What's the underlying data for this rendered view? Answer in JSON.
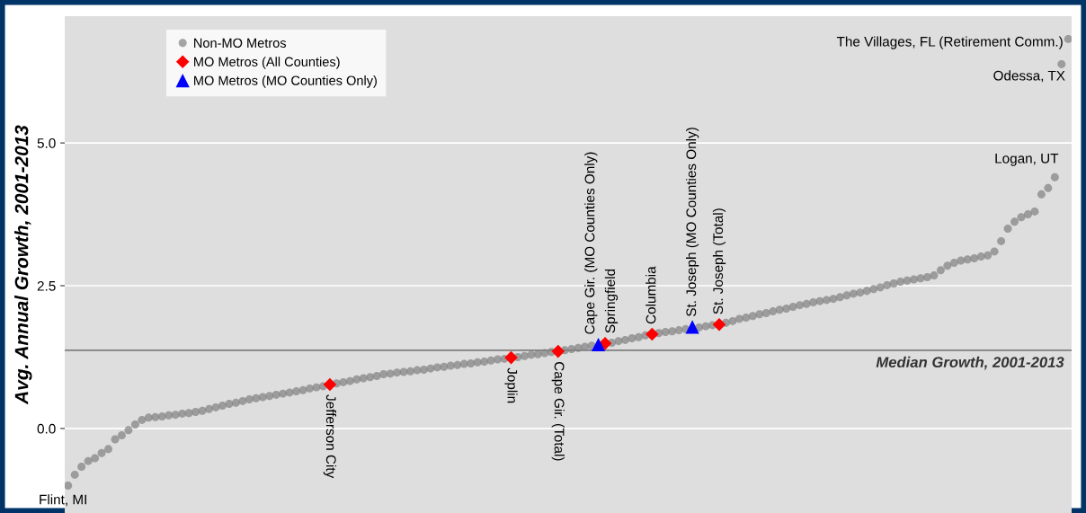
{
  "chart_data": {
    "type": "scatter",
    "ylabel": "Avg. Annual Growth, 2001-2013",
    "categories": [
      null,
      null,
      null,
      null,
      null,
      null,
      null,
      null,
      null,
      null,
      null,
      null,
      null,
      null,
      null,
      null,
      null,
      null,
      null,
      null,
      null,
      null,
      null,
      null,
      null,
      null,
      null,
      null,
      null,
      null,
      null,
      null,
      null,
      null,
      null,
      null,
      null,
      null,
      null,
      null,
      null,
      null,
      null,
      null,
      null,
      null,
      null,
      null,
      null,
      null,
      null,
      null,
      null,
      null,
      null,
      null,
      null,
      null,
      null,
      null,
      null,
      null,
      null,
      null,
      null,
      null,
      null,
      null,
      null,
      null,
      null,
      null,
      null,
      null,
      null,
      null,
      null,
      null,
      null,
      null,
      null,
      null,
      null,
      null,
      null,
      null,
      null,
      null,
      null,
      null,
      null,
      null,
      null,
      null,
      null,
      null,
      null,
      null,
      null,
      null,
      null,
      null,
      null,
      null,
      null,
      null,
      null,
      null,
      null,
      null,
      null,
      null,
      null,
      null,
      null,
      null,
      null,
      null,
      null,
      null,
      null,
      null,
      null,
      null,
      null,
      null,
      null,
      null,
      null,
      null,
      null,
      null,
      null,
      null,
      null,
      null,
      null,
      null,
      null,
      null,
      null,
      null,
      null,
      null,
      null,
      null,
      null,
      null,
      null,
      null
    ],
    "ylim": [
      -1.48,
      7.22
    ],
    "yticks": [
      {
        "value": 0,
        "label": "0.0"
      },
      {
        "value": 2.5,
        "label": "2.5"
      },
      {
        "value": 5,
        "label": "5.0"
      }
    ],
    "tick_labels": "y",
    "grid": "y",
    "legend": "top left",
    "series": [
      {
        "name": "Non-MO Metros",
        "color": "#808080",
        "marker": "circle",
        "values": [
          -1.0,
          -0.81,
          -0.67,
          -0.57,
          -0.52,
          -0.43,
          -0.36,
          -0.19,
          -0.12,
          -0.03,
          0.07,
          0.15,
          0.19,
          0.2,
          0.21,
          0.23,
          0.24,
          0.26,
          0.27,
          0.29,
          0.31,
          0.34,
          0.37,
          0.4,
          0.43,
          0.45,
          0.48,
          0.51,
          0.53,
          0.55,
          0.57,
          0.59,
          0.61,
          0.63,
          0.65,
          0.67,
          0.7,
          0.72,
          0.74,
          null,
          0.79,
          0.81,
          0.83,
          0.86,
          0.88,
          0.9,
          0.92,
          0.95,
          0.96,
          0.98,
          0.99,
          1.0,
          1.02,
          1.03,
          1.05,
          1.07,
          1.08,
          1.1,
          1.11,
          1.13,
          1.14,
          1.16,
          1.17,
          1.19,
          1.21,
          1.22,
          null,
          1.25,
          1.27,
          1.29,
          1.3,
          1.32,
          1.34,
          null,
          1.37,
          1.39,
          1.41,
          1.43,
          1.45,
          null,
          null,
          1.5,
          1.53,
          1.55,
          1.58,
          1.6,
          1.63,
          null,
          1.67,
          1.69,
          1.7,
          1.72,
          1.74,
          null,
          1.77,
          1.79,
          1.81,
          null,
          1.85,
          1.88,
          1.92,
          1.94,
          1.97,
          2.0,
          2.02,
          2.05,
          2.08,
          2.1,
          2.13,
          2.16,
          2.18,
          2.21,
          2.23,
          2.25,
          2.27,
          2.3,
          2.33,
          2.36,
          2.38,
          2.41,
          2.44,
          2.47,
          2.51,
          2.54,
          2.57,
          2.59,
          2.61,
          2.63,
          2.65,
          2.68,
          2.77,
          2.85,
          2.9,
          2.94,
          2.96,
          2.98,
          3.01,
          3.03,
          3.1,
          3.28,
          3.5,
          3.62,
          3.7,
          3.75,
          3.8,
          4.1,
          4.21,
          4.4,
          6.38,
          6.82
        ]
      },
      {
        "name": "MO Metros (All Counties)",
        "color": "#ff0000",
        "marker": "diamond",
        "values": [
          null,
          null,
          null,
          null,
          null,
          null,
          null,
          null,
          null,
          null,
          null,
          null,
          null,
          null,
          null,
          null,
          null,
          null,
          null,
          null,
          null,
          null,
          null,
          null,
          null,
          null,
          null,
          null,
          null,
          null,
          null,
          null,
          null,
          null,
          null,
          null,
          null,
          null,
          null,
          0.77,
          null,
          null,
          null,
          null,
          null,
          null,
          null,
          null,
          null,
          null,
          null,
          null,
          null,
          null,
          null,
          null,
          null,
          null,
          null,
          null,
          null,
          null,
          null,
          null,
          null,
          null,
          1.24,
          null,
          null,
          null,
          null,
          null,
          null,
          1.35,
          null,
          null,
          null,
          null,
          null,
          null,
          1.49,
          null,
          null,
          null,
          null,
          null,
          null,
          1.65,
          null,
          null,
          null,
          null,
          null,
          null,
          null,
          null,
          null,
          1.82,
          null,
          null,
          null,
          null,
          null,
          null,
          null,
          null,
          null,
          null,
          null,
          null,
          null,
          null,
          null,
          null,
          null,
          null,
          null,
          null,
          null,
          null,
          null,
          null,
          null,
          null,
          null,
          null,
          null,
          null,
          null,
          null,
          null,
          null,
          null,
          null,
          null,
          null,
          null,
          null,
          null,
          null,
          null,
          null,
          null,
          null,
          null,
          null,
          null,
          null,
          null,
          null
        ]
      },
      {
        "name": "MO Metros (MO Counties Only)",
        "color": "#0000ff",
        "marker": "triangle",
        "values": [
          null,
          null,
          null,
          null,
          null,
          null,
          null,
          null,
          null,
          null,
          null,
          null,
          null,
          null,
          null,
          null,
          null,
          null,
          null,
          null,
          null,
          null,
          null,
          null,
          null,
          null,
          null,
          null,
          null,
          null,
          null,
          null,
          null,
          null,
          null,
          null,
          null,
          null,
          null,
          null,
          null,
          null,
          null,
          null,
          null,
          null,
          null,
          null,
          null,
          null,
          null,
          null,
          null,
          null,
          null,
          null,
          null,
          null,
          null,
          null,
          null,
          null,
          null,
          null,
          null,
          null,
          null,
          null,
          null,
          null,
          null,
          null,
          null,
          null,
          null,
          null,
          null,
          null,
          null,
          1.47,
          null,
          null,
          null,
          null,
          null,
          null,
          null,
          null,
          null,
          null,
          null,
          null,
          null,
          1.78,
          null,
          null,
          null,
          null,
          null,
          null,
          null,
          null,
          null,
          null,
          null,
          null,
          null,
          null,
          null,
          null,
          null,
          null,
          null,
          null,
          null,
          null,
          null,
          null,
          null,
          null,
          null,
          null,
          null,
          null,
          null,
          null,
          null,
          null,
          null,
          null,
          null,
          null,
          null,
          null,
          null,
          null,
          null,
          null,
          null,
          null,
          null,
          null,
          null,
          null,
          null,
          null,
          null,
          null,
          null,
          null
        ]
      }
    ],
    "ref_lines": [
      {
        "axis": "y",
        "value": 1.37,
        "label": "Median Growth, 2001-2013",
        "color": "#7f7f7f"
      }
    ],
    "annotations": [
      "Flint, MI",
      {
        "text": "Jefferson City",
        "y": 0.77
      },
      {
        "text": "Joplin",
        "y": 1.24
      },
      {
        "text": "Cape Gir. (Total)",
        "y": 1.35
      },
      {
        "text": "Cape Gir. (MO Counties Only)",
        "y": 1.47
      },
      {
        "text": "Springfield",
        "y": 1.49
      },
      {
        "text": "Columbia",
        "y": 1.65
      },
      {
        "text": "St. Joseph (MO Counties Only)",
        "y": 1.78
      },
      {
        "text": "St. Joseph (Total)",
        "y": 1.82
      },
      "Logan, UT",
      "Odessa, TX",
      "The Villages, FL (Retirement Comm.)"
    ]
  }
}
